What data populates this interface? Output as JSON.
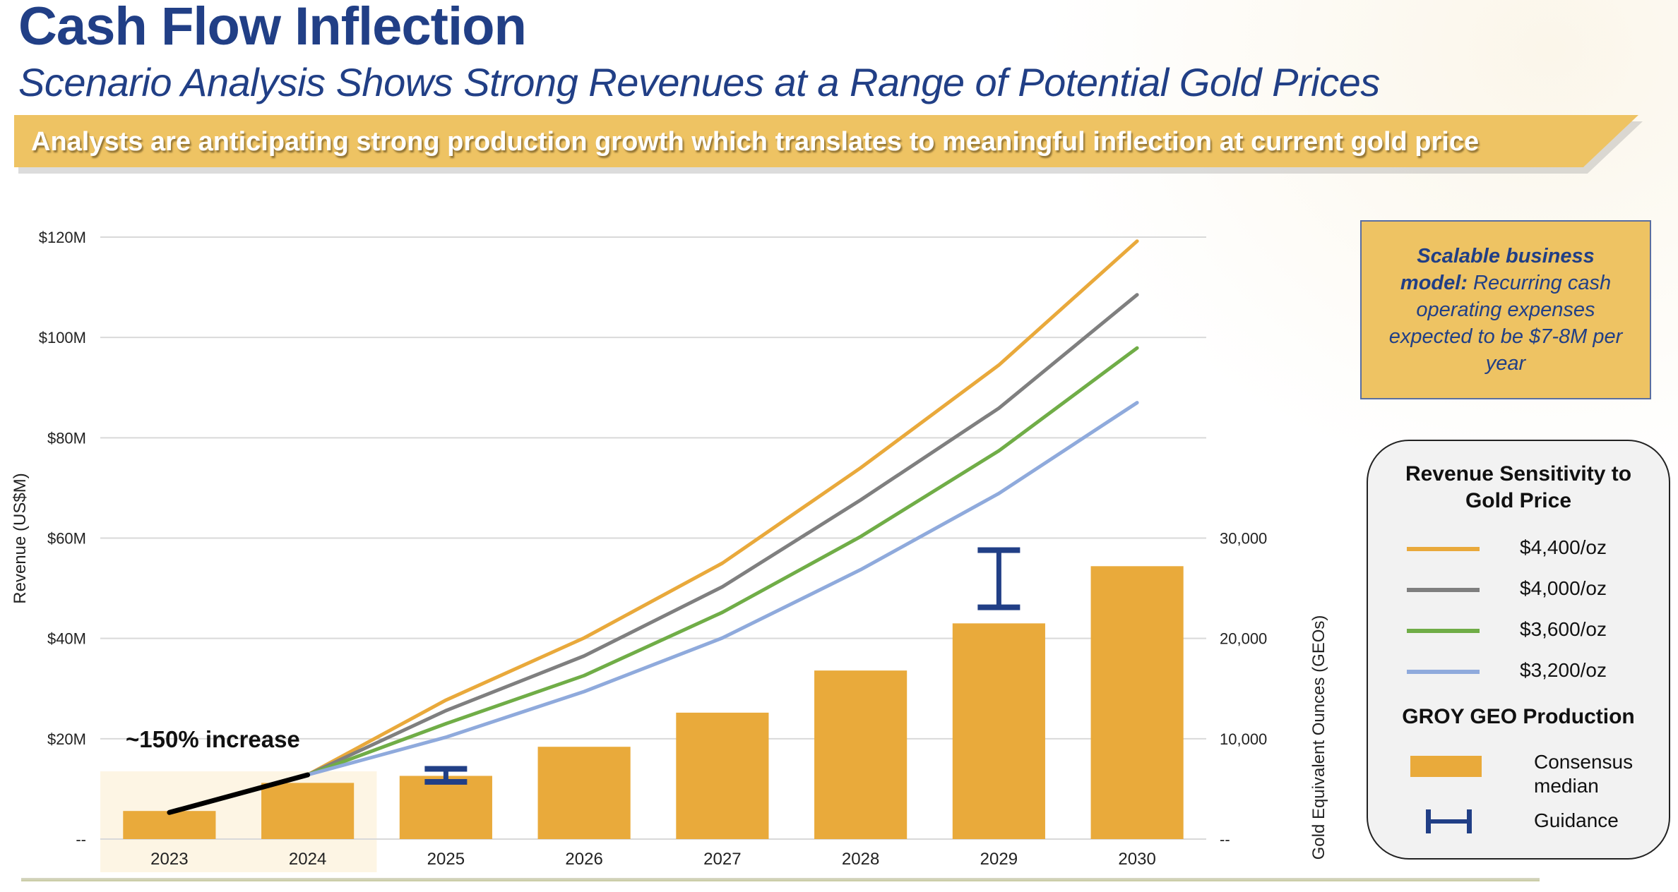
{
  "header": {
    "title": "Cash Flow Inflection",
    "subtitle": "Scenario Analysis Shows Strong Revenues at a Range of Potential Gold Prices",
    "banner": "Analysts are anticipating strong production growth which translates to meaningful inflection at current gold price"
  },
  "note_box": {
    "bold": "Scalable business model:",
    "text": " Recurring cash operating expenses expected to be $7-8M per year"
  },
  "legend": {
    "title1": "Revenue Sensitivity to Gold Price",
    "lines": [
      {
        "label": "$4,400/oz",
        "color": "#e9a93b"
      },
      {
        "label": "$4,000/oz",
        "color": "#7f7f7f"
      },
      {
        "label": "$3,600/oz",
        "color": "#70ad47"
      },
      {
        "label": "$3,200/oz",
        "color": "#8faadc"
      }
    ],
    "title2": "GROY GEO Production",
    "bar_label": "Consensus median",
    "guidance_label": "Guidance"
  },
  "colors": {
    "bar": "#e9aa3b",
    "guidance": "#213f86",
    "highlight": "#fdf5e4",
    "grid": "#d9d9d9",
    "historic_line": "#000000"
  },
  "chart_data": {
    "type": "bar+line",
    "categories": [
      "2023",
      "2024",
      "2025",
      "2026",
      "2027",
      "2028",
      "2029",
      "2030"
    ],
    "left_axis": {
      "title": "Revenue (US$M)",
      "ticks": [
        "--",
        "$20M",
        "$40M",
        "$60M",
        "$80M",
        "$100M",
        "$120M"
      ],
      "ylim": [
        0,
        120
      ]
    },
    "right_axis": {
      "title": "Gold Equivalent Ounces (GEOs)",
      "ticks": [
        "--",
        "10,000",
        "20,000",
        "30,000"
      ],
      "ylim": [
        0,
        60000
      ]
    },
    "bars": {
      "name": "Consensus median",
      "values": [
        2800,
        5600,
        6300,
        9200,
        12600,
        16800,
        21500,
        27200
      ]
    },
    "guidance": [
      {
        "category": "2025",
        "low": 5700,
        "high": 7000
      },
      {
        "category": "2029",
        "low": 23100,
        "high": 28800
      }
    ],
    "historic_line": {
      "categories": [
        "2023",
        "2024"
      ],
      "values": [
        5.3,
        12.8
      ]
    },
    "series": [
      {
        "name": "$4,400/oz",
        "values": [
          null,
          12.8,
          27.7,
          40.1,
          55.0,
          74.0,
          94.5,
          119.2
        ]
      },
      {
        "name": "$4,000/oz",
        "values": [
          null,
          12.8,
          25.6,
          36.5,
          50.3,
          67.6,
          85.9,
          108.5
        ]
      },
      {
        "name": "$3,600/oz",
        "values": [
          null,
          12.8,
          23.0,
          32.6,
          45.2,
          60.3,
          77.4,
          97.9
        ]
      },
      {
        "name": "$3,200/oz",
        "values": [
          null,
          12.8,
          20.3,
          29.4,
          40.1,
          53.7,
          68.9,
          87.0
        ]
      }
    ],
    "annotation": "~150% increase",
    "highlight_categories": [
      "2023",
      "2024"
    ],
    "grid": true,
    "legend": "right"
  }
}
